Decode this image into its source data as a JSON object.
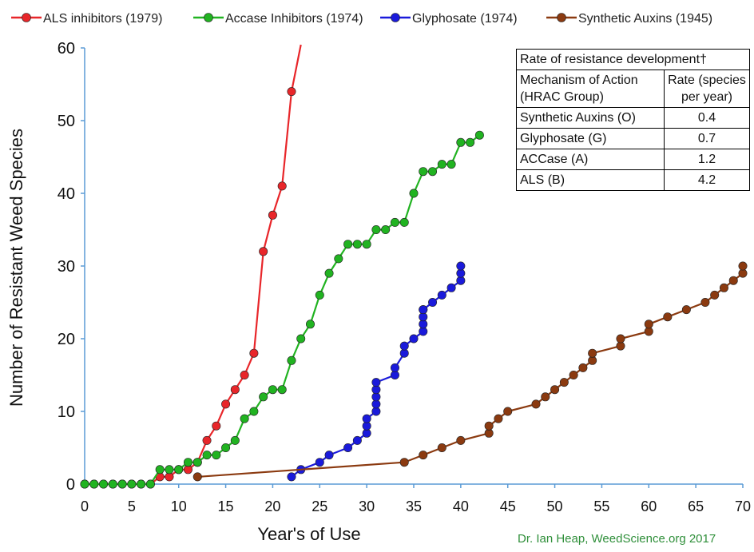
{
  "chart_data": {
    "type": "line",
    "xlabel": "Year's of Use",
    "ylabel": "Number of Resistant Weed Species",
    "xlim": [
      0,
      70
    ],
    "ylim": [
      0,
      60
    ],
    "xticks": [
      0,
      5,
      10,
      15,
      20,
      25,
      30,
      35,
      40,
      45,
      50,
      55,
      60,
      65,
      70
    ],
    "yticks": [
      0,
      10,
      20,
      30,
      40,
      50,
      60
    ],
    "grid": false,
    "legend_position": "top",
    "series": [
      {
        "name": "ALS inhibitors (1979)",
        "color": "#e8262a",
        "x": [
          0,
          1,
          2,
          3,
          4,
          5,
          6,
          7,
          8,
          9,
          10,
          11,
          12,
          13,
          14,
          15,
          16,
          17,
          18,
          19,
          20,
          21,
          22,
          23
        ],
        "y": [
          0,
          0,
          0,
          0,
          0,
          0,
          0,
          0,
          1,
          1,
          2,
          2,
          3,
          6,
          8,
          11,
          13,
          15,
          18,
          32,
          37,
          41,
          54,
          62
        ]
      },
      {
        "name": "Accase Inhibitors (1974)",
        "color": "#21b321",
        "x": [
          0,
          1,
          2,
          3,
          4,
          5,
          6,
          7,
          8,
          9,
          10,
          11,
          12,
          13,
          14,
          15,
          16,
          17,
          18,
          19,
          20,
          21,
          22,
          23,
          24,
          25,
          26,
          27,
          28,
          29,
          30,
          31,
          32,
          33,
          34,
          35,
          36,
          37,
          38,
          39,
          40,
          41,
          42
        ],
        "y": [
          0,
          0,
          0,
          0,
          0,
          0,
          0,
          0,
          2,
          2,
          2,
          3,
          3,
          4,
          4,
          5,
          6,
          9,
          10,
          12,
          13,
          13,
          17,
          20,
          22,
          26,
          29,
          31,
          33,
          33,
          33,
          35,
          35,
          36,
          36,
          40,
          43,
          43,
          44,
          44,
          47,
          47,
          48
        ]
      },
      {
        "name": "Glyphosate (1974)",
        "color": "#1a1adb",
        "x": [
          22,
          23,
          25,
          26,
          28,
          29,
          30,
          30,
          30,
          31,
          31,
          31,
          31,
          31,
          33,
          33,
          34,
          34,
          35,
          36,
          36,
          36,
          36,
          36,
          37,
          38,
          39,
          40,
          40,
          40
        ],
        "y": [
          1,
          2,
          3,
          4,
          5,
          6,
          7,
          8,
          9,
          10,
          11,
          12,
          13,
          14,
          15,
          16,
          18,
          19,
          20,
          21,
          22,
          23,
          24,
          24,
          25,
          26,
          27,
          28,
          29,
          30
        ]
      },
      {
        "name": "Synthetic Auxins (1945)",
        "color": "#8b3a10",
        "x": [
          12,
          34,
          36,
          38,
          40,
          43,
          43,
          44,
          45,
          48,
          49,
          50,
          51,
          52,
          53,
          54,
          54,
          57,
          57,
          60,
          60,
          62,
          64,
          66,
          67,
          68,
          69,
          70,
          70
        ],
        "y": [
          1,
          3,
          4,
          5,
          6,
          7,
          8,
          9,
          10,
          11,
          12,
          13,
          14,
          15,
          16,
          17,
          18,
          19,
          20,
          21,
          22,
          23,
          24,
          25,
          26,
          27,
          28,
          29,
          30
        ]
      }
    ]
  },
  "table": {
    "title": "Rate of resistance development†",
    "col_header_1": "Mechanism of Action (HRAC Group)",
    "col_header_2": "Rate (species per year)",
    "rows": [
      {
        "moa": "Synthetic Auxins (O)",
        "rate": "0.4"
      },
      {
        "moa": "Glyphosate (G)",
        "rate": "0.7"
      },
      {
        "moa": "ACCase (A)",
        "rate": "1.2"
      },
      {
        "moa": "ALS (B)",
        "rate": "4.2"
      }
    ]
  },
  "credit": "Dr. Ian Heap, WeedScience.org  2017"
}
